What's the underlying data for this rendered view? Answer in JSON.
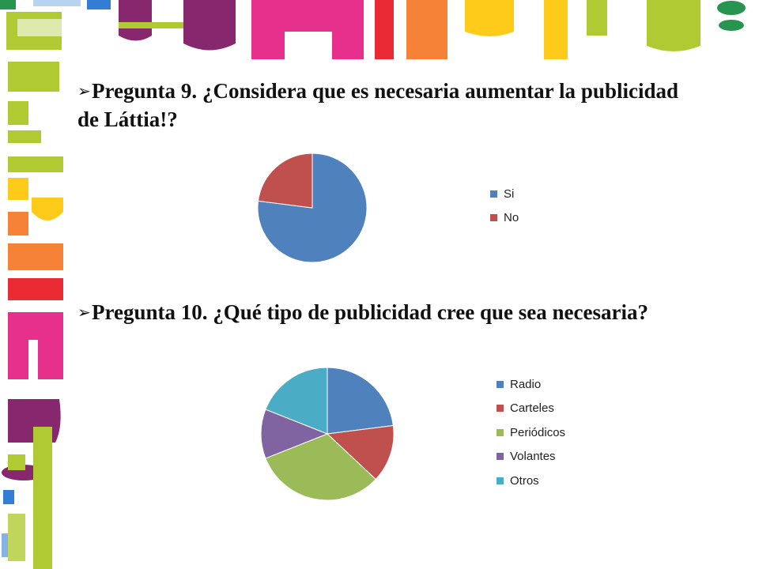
{
  "questions": {
    "q9": "Pregunta 9. ¿Considera que es necesaria aumentar la publicidad de Láttia!?",
    "q10": "Pregunta 10. ¿Qué tipo de publicidad cree que sea necesaria?"
  },
  "icons": {
    "bullet": "arrow-bullet-icon"
  },
  "decoration": {
    "colors": [
      "#a6c51c",
      "#7a0f5e",
      "#e5197e",
      "#e8141e",
      "#f47421",
      "#ffc600",
      "#0f8a3c",
      "#1e6fd0"
    ]
  },
  "chart_data": [
    {
      "type": "pie",
      "title": "",
      "categories": [
        "Si",
        "No"
      ],
      "values": [
        77,
        23
      ],
      "colors": [
        "#4f81bd",
        "#c0504d"
      ],
      "legend": "right"
    },
    {
      "type": "pie",
      "title": "",
      "categories": [
        "Radio",
        "Carteles",
        "Periódicos",
        "Volantes",
        "Otros"
      ],
      "values": [
        23,
        14,
        32,
        12,
        19
      ],
      "colors": [
        "#4f81bd",
        "#c0504d",
        "#9bbb59",
        "#8064a2",
        "#4bacc6"
      ],
      "legend": "right"
    }
  ]
}
